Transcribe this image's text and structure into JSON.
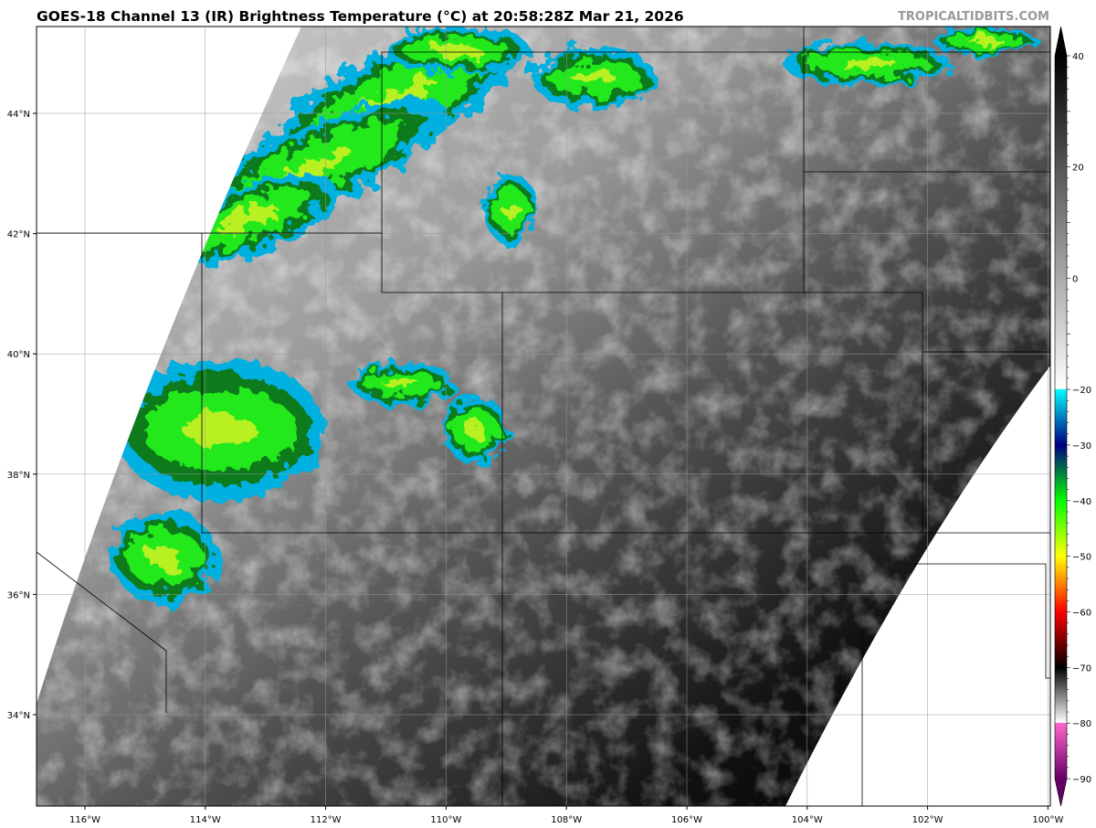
{
  "title": "GOES-18 Channel 13 (IR) Brightness Temperature (°C) at 20:58:28Z Mar 21, 2026",
  "credit": "TROPICALTIDBITS.COM",
  "map": {
    "projection": "geostationary swath over western US",
    "lon_range": [
      -116.8,
      -99.95
    ],
    "lat_range": [
      32.5,
      45.4
    ],
    "lon_ticks": [
      -116,
      -114,
      -112,
      -110,
      -108,
      -106,
      -104,
      -102,
      -100
    ],
    "lon_labels": [
      "116°W",
      "114°W",
      "112°W",
      "110°W",
      "108°W",
      "106°W",
      "104°W",
      "102°W",
      "100°W"
    ],
    "lat_ticks": [
      34,
      36,
      38,
      40,
      42,
      44
    ],
    "lat_labels": [
      "34°N",
      "36°N",
      "38°N",
      "40°N",
      "42°N",
      "44°N"
    ],
    "grid": true
  },
  "colorbar": {
    "range": [
      -90,
      40
    ],
    "extend": "both",
    "ticks": [
      40,
      20,
      0,
      -20,
      -30,
      -40,
      -50,
      -60,
      -70,
      -80,
      -90
    ],
    "tick_labels": [
      "40",
      "20",
      "0",
      "−20",
      "−30",
      "−40",
      "−50",
      "−60",
      "−70",
      "−80",
      "−90"
    ],
    "stops": [
      {
        "t": 40,
        "color": "#000000"
      },
      {
        "t": -19.9,
        "color": "#ffffff"
      },
      {
        "t": -20,
        "color": "#00ffff"
      },
      {
        "t": -30,
        "color": "#000080"
      },
      {
        "t": -40,
        "color": "#00ff00"
      },
      {
        "t": -50,
        "color": "#ffff00"
      },
      {
        "t": -60,
        "color": "#ff0000"
      },
      {
        "t": -70,
        "color": "#000000"
      },
      {
        "t": -79.9,
        "color": "#ffffff"
      },
      {
        "t": -80,
        "color": "#ff66cc"
      },
      {
        "t": -90,
        "color": "#660066"
      }
    ]
  }
}
